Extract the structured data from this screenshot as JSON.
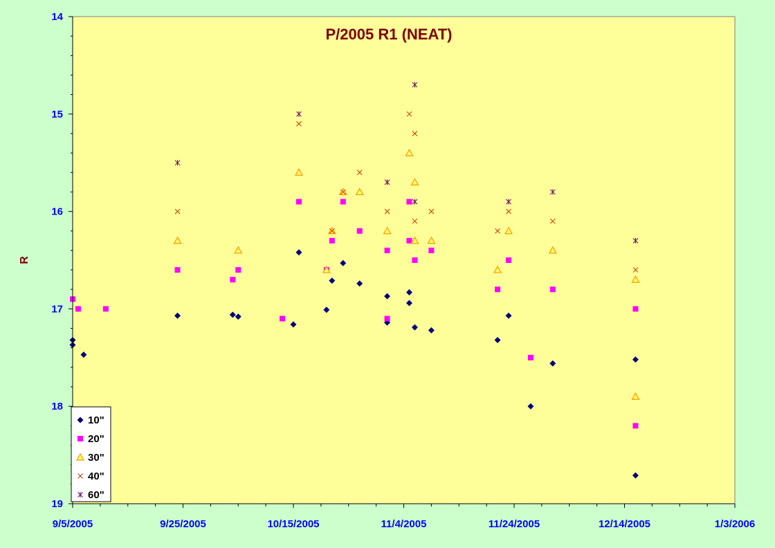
{
  "chart_data": {
    "type": "scatter",
    "title": "P/2005 R1 (NEAT)",
    "xlabel": "",
    "ylabel": "R",
    "x_axis": {
      "type": "date",
      "range": [
        "2005-09-05",
        "2006-01-03"
      ],
      "tick_labels": [
        "9/5/2005",
        "9/25/2005",
        "10/15/2005",
        "11/4/2005",
        "11/24/2005",
        "12/14/2005",
        "1/3/2006"
      ]
    },
    "y_axis": {
      "range": [
        14,
        19
      ],
      "reversed": true,
      "ticks": [
        14,
        15,
        16,
        17,
        18,
        19
      ]
    },
    "grid": false,
    "legend": "bottom-left",
    "background_color": "#ffff99",
    "series": [
      {
        "name": "10\"",
        "marker": "diamond",
        "color": "#000080",
        "points": [
          [
            "2005-09-05",
            17.37
          ],
          [
            "2005-09-05",
            17.32
          ],
          [
            "2005-09-07",
            17.47
          ],
          [
            "2005-09-24",
            17.07
          ],
          [
            "2005-10-04",
            17.06
          ],
          [
            "2005-10-05",
            17.08
          ],
          [
            "2005-10-15",
            17.16
          ],
          [
            "2005-10-16",
            16.42
          ],
          [
            "2005-10-21",
            17.01
          ],
          [
            "2005-10-22",
            16.71
          ],
          [
            "2005-10-24",
            16.53
          ],
          [
            "2005-10-27",
            16.74
          ],
          [
            "2005-11-01",
            16.87
          ],
          [
            "2005-11-01",
            17.14
          ],
          [
            "2005-11-05",
            16.83
          ],
          [
            "2005-11-05",
            16.94
          ],
          [
            "2005-11-06",
            17.19
          ],
          [
            "2005-11-09",
            17.22
          ],
          [
            "2005-11-21",
            17.32
          ],
          [
            "2005-11-23",
            17.07
          ],
          [
            "2005-11-27",
            18.0
          ],
          [
            "2005-12-01",
            17.56
          ],
          [
            "2005-12-16",
            17.52
          ],
          [
            "2005-12-16",
            18.71
          ]
        ]
      },
      {
        "name": "20\"",
        "marker": "square",
        "color": "#ff00ff",
        "points": [
          [
            "2005-09-05",
            16.9
          ],
          [
            "2005-09-06",
            17.0
          ],
          [
            "2005-09-11",
            17.0
          ],
          [
            "2005-09-24",
            16.6
          ],
          [
            "2005-10-04",
            16.7
          ],
          [
            "2005-10-05",
            16.6
          ],
          [
            "2005-10-13",
            17.1
          ],
          [
            "2005-10-16",
            15.9
          ],
          [
            "2005-10-21",
            16.6
          ],
          [
            "2005-10-22",
            16.3
          ],
          [
            "2005-10-24",
            15.9
          ],
          [
            "2005-10-27",
            16.2
          ],
          [
            "2005-11-01",
            16.4
          ],
          [
            "2005-11-01",
            17.1
          ],
          [
            "2005-11-05",
            15.9
          ],
          [
            "2005-11-05",
            16.3
          ],
          [
            "2005-11-06",
            16.5
          ],
          [
            "2005-11-09",
            16.4
          ],
          [
            "2005-11-21",
            16.8
          ],
          [
            "2005-11-23",
            16.5
          ],
          [
            "2005-11-27",
            17.5
          ],
          [
            "2005-12-01",
            16.8
          ],
          [
            "2005-12-16",
            17.0
          ],
          [
            "2005-12-16",
            18.2
          ]
        ]
      },
      {
        "name": "30\"",
        "marker": "triangle",
        "color": "#ff9900",
        "points": [
          [
            "2005-09-24",
            16.3
          ],
          [
            "2005-10-05",
            16.4
          ],
          [
            "2005-10-16",
            15.6
          ],
          [
            "2005-10-21",
            16.6
          ],
          [
            "2005-10-22",
            16.2
          ],
          [
            "2005-10-24",
            15.8
          ],
          [
            "2005-10-27",
            15.8
          ],
          [
            "2005-11-01",
            16.2
          ],
          [
            "2005-11-05",
            15.4
          ],
          [
            "2005-11-06",
            15.7
          ],
          [
            "2005-11-06",
            16.3
          ],
          [
            "2005-11-09",
            16.3
          ],
          [
            "2005-11-21",
            16.6
          ],
          [
            "2005-11-23",
            16.2
          ],
          [
            "2005-12-01",
            16.4
          ],
          [
            "2005-12-16",
            16.7
          ],
          [
            "2005-12-16",
            17.9
          ]
        ]
      },
      {
        "name": "40\"",
        "marker": "x",
        "color": "#cc3300",
        "points": [
          [
            "2005-09-24",
            16.0
          ],
          [
            "2005-10-16",
            15.1
          ],
          [
            "2005-10-22",
            16.2
          ],
          [
            "2005-10-24",
            15.8
          ],
          [
            "2005-10-27",
            15.6
          ],
          [
            "2005-11-01",
            16.0
          ],
          [
            "2005-11-05",
            15.0
          ],
          [
            "2005-11-06",
            15.2
          ],
          [
            "2005-11-06",
            16.1
          ],
          [
            "2005-11-09",
            16.0
          ],
          [
            "2005-11-21",
            16.2
          ],
          [
            "2005-11-23",
            16.0
          ],
          [
            "2005-12-01",
            16.1
          ],
          [
            "2005-12-16",
            16.6
          ]
        ]
      },
      {
        "name": "60\"",
        "marker": "star",
        "color": "#660066",
        "points": [
          [
            "2005-09-24",
            15.5
          ],
          [
            "2005-10-16",
            15.0
          ],
          [
            "2005-11-01",
            15.7
          ],
          [
            "2005-11-06",
            14.7
          ],
          [
            "2005-11-06",
            15.9
          ],
          [
            "2005-11-23",
            15.9
          ],
          [
            "2005-12-01",
            15.8
          ],
          [
            "2005-12-16",
            16.3
          ]
        ]
      }
    ]
  }
}
